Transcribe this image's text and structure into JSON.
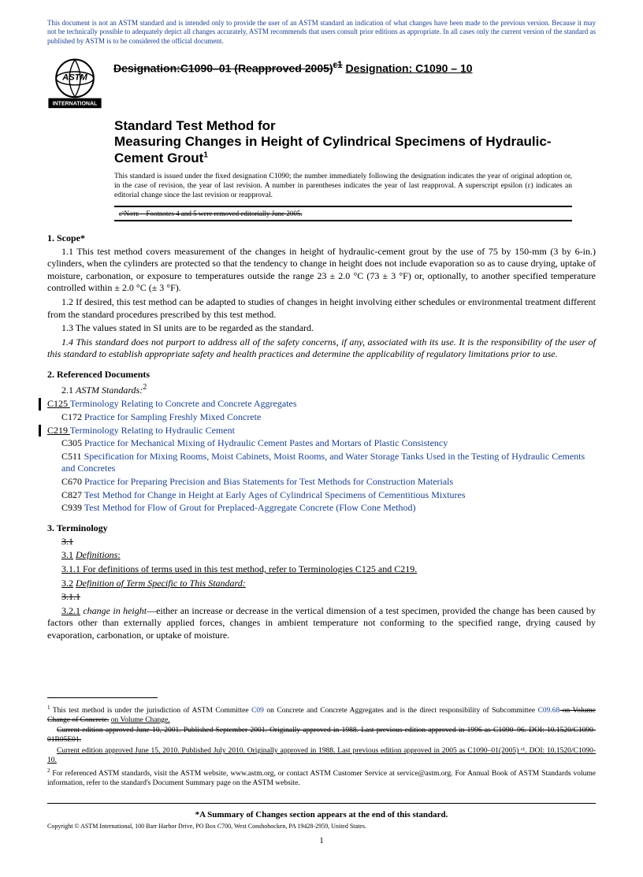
{
  "disclaimer": "This document is not an ASTM standard and is intended only to provide the user of an ASTM standard an indication of what changes have been made to the previous version. Because it may not be technically possible to adequately depict all changes accurately, ASTM recommends that users consult prior editions as appropriate. In all cases only the current version of the standard as published by ASTM is to be considered the official document.",
  "logo_text": "INTERNATIONAL",
  "designation_strike": "Designation:C1090–01 (Reapproved 2005)",
  "designation_sup": "ε1",
  "designation_new": "Designation: C1090 – 10",
  "title_line1": "Standard Test Method for",
  "title_line2": "Measuring Changes in Height of Cylindrical Specimens of Hydraulic-Cement Grout",
  "title_sup": "1",
  "issuance": "This standard is issued under the fixed designation C1090; the number immediately following the designation indicates the year of original adoption or, in the case of revision, the year of last revision. A number in parentheses indicates the year of last reapproval. A superscript epsilon (ε) indicates an editorial change since the last revision or reapproval.",
  "note_strike": "ε¹Nᴏᴛᴇ—Footnotes 4 and 5 were removed editorially June 2005.",
  "s1_head": "1. Scope*",
  "s1_1": "1.1 This test method covers measurement of the changes in height of hydraulic-cement grout by the use of 75 by 150-mm (3 by 6-in.) cylinders, when the cylinders are protected so that the tendency to change in height does not include evaporation so as to cause drying, uptake of moisture, carbonation, or exposure to temperatures outside the range 23 ± 2.0 °C (73 ± 3 °F) or, optionally, to another specified temperature controlled within ± 2.0 °C (± 3 °F).",
  "s1_2": "1.2 If desired, this test method can be adapted to studies of changes in height involving either schedules or environmental treatment different from the standard procedures prescribed by this test method.",
  "s1_3": "1.3 The values stated in SI units are to be regarded as the standard.",
  "s1_4": "1.4 This standard does not purport to address all of the safety concerns, if any, associated with its use. It is the responsibility of the user of this standard to establish appropriate safety and health practices and determine the applicability of regulatory limitations prior to use.",
  "s2_head": "2. Referenced Documents",
  "s2_1": "2.1 ",
  "s2_1_italic": "ASTM Standards:",
  "s2_1_sup": "2",
  "refs": [
    {
      "code": "C125",
      "title": "Terminology Relating to Concrete and Concrete Aggregates",
      "link": true,
      "bar": true
    },
    {
      "code": "C172",
      "title": "Practice for Sampling Freshly Mixed Concrete",
      "link": true,
      "bar": false
    },
    {
      "code": "C219",
      "title": "Terminology Relating to Hydraulic Cement",
      "link": true,
      "bar": true
    },
    {
      "code": "C305",
      "title": "Practice for Mechanical Mixing of Hydraulic Cement Pastes and Mortars of Plastic Consistency",
      "link": true,
      "bar": false
    },
    {
      "code": "C511",
      "title": "Specification for Mixing Rooms, Moist Cabinets, Moist Rooms, and Water Storage Tanks Used in the Testing of Hydraulic Cements and Concretes",
      "link": true,
      "bar": false
    },
    {
      "code": "C670",
      "title": "Practice for Preparing Precision and Bias Statements for Test Methods for Construction Materials",
      "link": true,
      "bar": false
    },
    {
      "code": "C827",
      "title": "Test Method for Change in Height at Early Ages of Cylindrical Specimens of Cementitious Mixtures",
      "link": true,
      "bar": false
    },
    {
      "code": "C939",
      "title": "Test Method for Flow of Grout for Preplaced-Aggregate Concrete (Flow Cone Method)",
      "link": true,
      "bar": false
    }
  ],
  "s3_head": "3. Terminology",
  "s3_1_strike": "3.1",
  "s3_1_u": "3.1",
  "s3_1_def": "Definitions",
  "s3_1_colon": ":",
  "s3_1_1": "3.1.1 For definitions of terms used in this test method, refer to Terminologies C125 and C219.",
  "s3_2_u": "3.2",
  "s3_2_def": "Definition of Term Specific to This Standard:",
  "s3_1_1_strike": "3.1.1",
  "s3_2_1_u": "3.2.1",
  "s3_2_1_term": "change in height",
  "s3_2_1_body": "—either an increase or decrease in the vertical dimension of a test specimen, provided the change has been caused by factors other than externally applied forces, changes in ambient temperature not conforming to the specified range, drying caused by evaporation, carbonation, or uptake of moisture.",
  "fn1_a": " This test method is under the jurisdiction of ASTM Committee ",
  "fn1_link1": "C09",
  "fn1_b": " on Concrete and Concrete Aggregates and is the direct responsibility of Subcommittee ",
  "fn1_link2": "C09.68",
  "fn1_strike1": " on Volume Change of Concrete.",
  "fn1_strike2": "Current edition approved June 10, 2001. Published September 2001. Originally approved in 1988. Last previous edition approved in 1996 as C1090–96. DOI: 10.1520/C1090-01R05E01.",
  "fn1_u1": "on Volume Change.",
  "fn1_u2": "Current edition approved June 15, 2010. Published July 2010. Originally approved in 1988. Last previous edition approved in 2005 as C1090–01(2005) ᵉ¹. DOI: 10.1520/C1090-10.",
  "fn2": " For referenced ASTM standards, visit the ASTM website, www.astm.org, or contact ASTM Customer Service at service@astm.org. For Annual Book of ASTM Standards volume information, refer to the standard's Document Summary page on the ASTM website.",
  "summary": "*A Summary of Changes section appears at the end of this standard.",
  "copyright": "Copyright © ASTM International, 100 Barr Harbor Drive, PO Box C700, West Conshohocken, PA 19428-2959, United States.",
  "page_num": "1",
  "colors": {
    "link": "#1a3f8f",
    "text": "#000000",
    "bg": "#ffffff"
  }
}
